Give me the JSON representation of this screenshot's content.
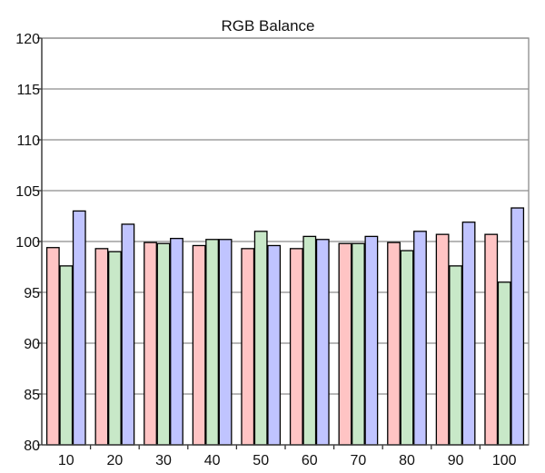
{
  "chart_data": {
    "type": "bar",
    "title": "RGB Balance",
    "xlabel": "",
    "ylabel": "",
    "categories": [
      "10",
      "20",
      "30",
      "40",
      "50",
      "60",
      "70",
      "80",
      "90",
      "100"
    ],
    "ylim": [
      80,
      120
    ],
    "yticks": [
      80,
      85,
      90,
      95,
      100,
      105,
      110,
      115,
      120
    ],
    "grid": true,
    "legend": "none",
    "series": [
      {
        "color": "#ffc4c4",
        "values": [
          99.4,
          99.3,
          99.9,
          99.6,
          99.3,
          99.3,
          99.8,
          99.9,
          100.7,
          100.7
        ]
      },
      {
        "color": "#c8e8c8",
        "values": [
          97.6,
          99.0,
          99.8,
          100.2,
          101.0,
          100.5,
          99.8,
          99.1,
          97.6,
          96.0
        ]
      },
      {
        "color": "#c0c4ff",
        "values": [
          103.0,
          101.7,
          100.3,
          100.2,
          99.6,
          100.2,
          100.5,
          101.0,
          101.9,
          103.3
        ]
      }
    ]
  }
}
